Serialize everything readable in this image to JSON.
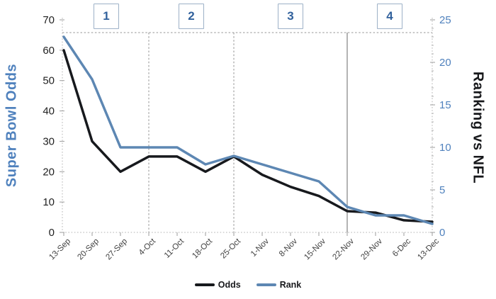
{
  "page": {
    "background": "#ffffff"
  },
  "chart_data": {
    "type": "line",
    "title": "",
    "categories": [
      "13-Sep",
      "20-Sep",
      "27-Sep",
      "4-Oct",
      "11-Oct",
      "18-Oct",
      "25-Oct",
      "1-Nov",
      "8-Nov",
      "15-Nov",
      "22-Nov",
      "29-Nov",
      "6-Dec",
      "13-Dec"
    ],
    "series": [
      {
        "name": "Odds",
        "axis": "left",
        "color": "#17191d",
        "values": [
          60,
          30,
          20,
          25,
          25,
          20,
          25,
          19,
          15,
          12,
          7,
          6.5,
          4,
          3.5
        ]
      },
      {
        "name": "Rank",
        "axis": "right",
        "color": "#5d87b3",
        "values": [
          23,
          18,
          10,
          10,
          10,
          8,
          9,
          8,
          7,
          6,
          3,
          2,
          2,
          1
        ]
      }
    ],
    "left_axis": {
      "title": "Super Bowl Odds",
      "min": 0,
      "max": 70,
      "tick_step": 10,
      "tick_labels": [
        "70",
        "60",
        "50",
        "40",
        "30",
        "20",
        "10",
        "0"
      ],
      "title_color": "#4f81bd",
      "tick_color": "#1f1f1f"
    },
    "right_axis": {
      "title": "Ranking vs NFL",
      "min": 0,
      "max": 25,
      "tick_step": 5,
      "tick_labels": [
        "25",
        "20",
        "15",
        "10",
        "5",
        "0"
      ],
      "title_color": "#17181b",
      "tick_color": "#4f81bd"
    },
    "x_axis": {
      "tick_label_rotation": -45,
      "tick_color": "#3f3f3f"
    },
    "phases": [
      {
        "label": "1",
        "start_category": "13-Sep",
        "end_category": "4-Oct",
        "start_index": 0,
        "end_index": 3
      },
      {
        "label": "2",
        "start_category": "4-Oct",
        "end_category": "25-Oct",
        "start_index": 3,
        "end_index": 6
      },
      {
        "label": "3",
        "start_category": "25-Oct",
        "end_category": "22-Nov",
        "start_index": 6,
        "end_index": 10
      },
      {
        "label": "4",
        "start_category": "22-Nov",
        "end_category": "13-Dec",
        "start_index": 10,
        "end_index": 13
      }
    ],
    "dividers": [
      {
        "at_category": "4-Oct",
        "index": 3,
        "style": "dashed"
      },
      {
        "at_category": "25-Oct",
        "index": 6,
        "style": "dashed"
      },
      {
        "at_category": "22-Nov",
        "index": 10,
        "style": "solid"
      }
    ],
    "top_boundary_line": {
      "style": "dashed",
      "color": "#ababab"
    },
    "legend": {
      "position": "bottom-center",
      "items": [
        {
          "label": "Odds",
          "color": "#17191d"
        },
        {
          "label": "Rank",
          "color": "#5d87b3"
        }
      ]
    },
    "style_colors": {
      "phase_box_border": "#9db1c7",
      "phase_box_text": "#31619c",
      "divider": "#ababab",
      "axis_line": "#b3b3b3",
      "tick_mark": "#9e9e9e"
    },
    "grid": {
      "horizontal_gridlines": false,
      "vertical_gridlines": false
    }
  }
}
